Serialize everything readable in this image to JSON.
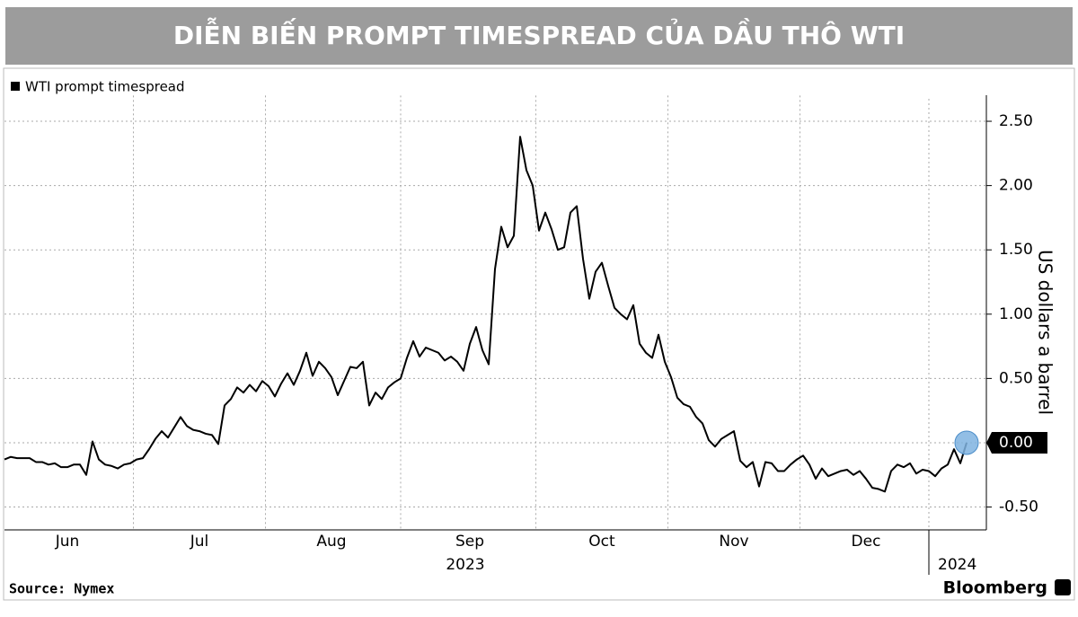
{
  "header": {
    "title": "DIỄN BIẾN PROMPT TIMESPREAD CỦA DẦU THÔ WTI"
  },
  "chart_data": {
    "type": "line",
    "series": [
      {
        "name": "WTI prompt timespread",
        "color": "#000000",
        "values": [
          -0.13,
          -0.11,
          -0.12,
          -0.12,
          -0.12,
          -0.15,
          -0.15,
          -0.17,
          -0.16,
          -0.19,
          -0.19,
          -0.17,
          -0.17,
          -0.25,
          0.01,
          -0.13,
          -0.17,
          -0.18,
          -0.2,
          -0.17,
          -0.16,
          -0.13,
          -0.12,
          -0.05,
          0.03,
          0.09,
          0.04,
          0.12,
          0.2,
          0.13,
          0.1,
          0.09,
          0.07,
          0.06,
          -0.01,
          0.29,
          0.34,
          0.43,
          0.39,
          0.45,
          0.4,
          0.48,
          0.44,
          0.36,
          0.46,
          0.54,
          0.45,
          0.56,
          0.7,
          0.52,
          0.63,
          0.58,
          0.51,
          0.37,
          0.48,
          0.59,
          0.58,
          0.63,
          0.29,
          0.39,
          0.34,
          0.43,
          0.47,
          0.5,
          0.66,
          0.79,
          0.67,
          0.74,
          0.72,
          0.7,
          0.64,
          0.67,
          0.63,
          0.56,
          0.77,
          0.9,
          0.72,
          0.61,
          1.35,
          1.68,
          1.52,
          1.61,
          2.38,
          2.12,
          2.0,
          1.65,
          1.79,
          1.66,
          1.5,
          1.52,
          1.79,
          1.84,
          1.43,
          1.12,
          1.33,
          1.4,
          1.22,
          1.05,
          1.0,
          0.96,
          1.07,
          0.77,
          0.7,
          0.66,
          0.84,
          0.63,
          0.51,
          0.35,
          0.3,
          0.28,
          0.2,
          0.15,
          0.02,
          -0.03,
          0.03,
          0.06,
          0.09,
          -0.14,
          -0.19,
          -0.15,
          -0.34,
          -0.15,
          -0.16,
          -0.22,
          -0.22,
          -0.17,
          -0.13,
          -0.1,
          -0.17,
          -0.28,
          -0.2,
          -0.26,
          -0.24,
          -0.22,
          -0.21,
          -0.25,
          -0.22,
          -0.28,
          -0.35,
          -0.36,
          -0.38,
          -0.22,
          -0.17,
          -0.19,
          -0.16,
          -0.24,
          -0.21,
          -0.22,
          -0.26,
          -0.2,
          -0.17,
          -0.05,
          -0.16,
          0.0
        ]
      }
    ],
    "categories": [
      null,
      null,
      null,
      null,
      null,
      null,
      null,
      null,
      null,
      null,
      "Jun",
      null,
      null,
      null,
      null,
      null,
      null,
      null,
      null,
      null,
      null,
      null,
      null,
      null,
      null,
      null,
      null,
      null,
      null,
      null,
      null,
      "Jul",
      null,
      null,
      null,
      null,
      null,
      null,
      null,
      null,
      null,
      null,
      null,
      null,
      null,
      null,
      null,
      null,
      null,
      null,
      null,
      null,
      "Aug",
      null,
      null,
      null,
      null,
      null,
      null,
      null,
      null,
      null,
      null,
      null,
      null,
      null,
      null,
      null,
      null,
      null,
      null,
      null,
      null,
      null,
      "Sep",
      null,
      null,
      null,
      null,
      null,
      null,
      null,
      null,
      null,
      null,
      null,
      null,
      null,
      null,
      null,
      null,
      null,
      null,
      null,
      null,
      "Oct",
      null,
      null,
      null,
      null,
      null,
      null,
      null,
      null,
      null,
      null,
      null,
      null,
      null,
      null,
      null,
      null,
      null,
      null,
      null,
      null,
      "Nov",
      null,
      null,
      null,
      null,
      null,
      null,
      null,
      null,
      null,
      null,
      null,
      null,
      null,
      null,
      null,
      null,
      null,
      null,
      null,
      null,
      "Dec",
      null,
      null,
      null,
      null,
      null,
      null,
      null,
      null,
      null,
      null,
      null,
      null,
      null,
      null,
      null,
      null
    ],
    "year_labels": [
      "2023",
      "2024"
    ],
    "ylim": [
      -0.67,
      2.7
    ],
    "yticks": [
      {
        "value": -0.5,
        "label": "-0.50"
      },
      {
        "value": 0,
        "label": "0.00"
      },
      {
        "value": 0.5,
        "label": "0.50"
      },
      {
        "value": 1,
        "label": "1.00"
      },
      {
        "value": 1.5,
        "label": "1.50"
      },
      {
        "value": 2,
        "label": "2.00"
      },
      {
        "value": 2.5,
        "label": "2.50"
      }
    ],
    "y_label": "US dollars a barrel",
    "y_axis_side": "right",
    "grid": true,
    "legend": "top-left",
    "marker_color": "#7fb3e0",
    "source": "Source: Nymex",
    "brand": "Bloomberg"
  }
}
